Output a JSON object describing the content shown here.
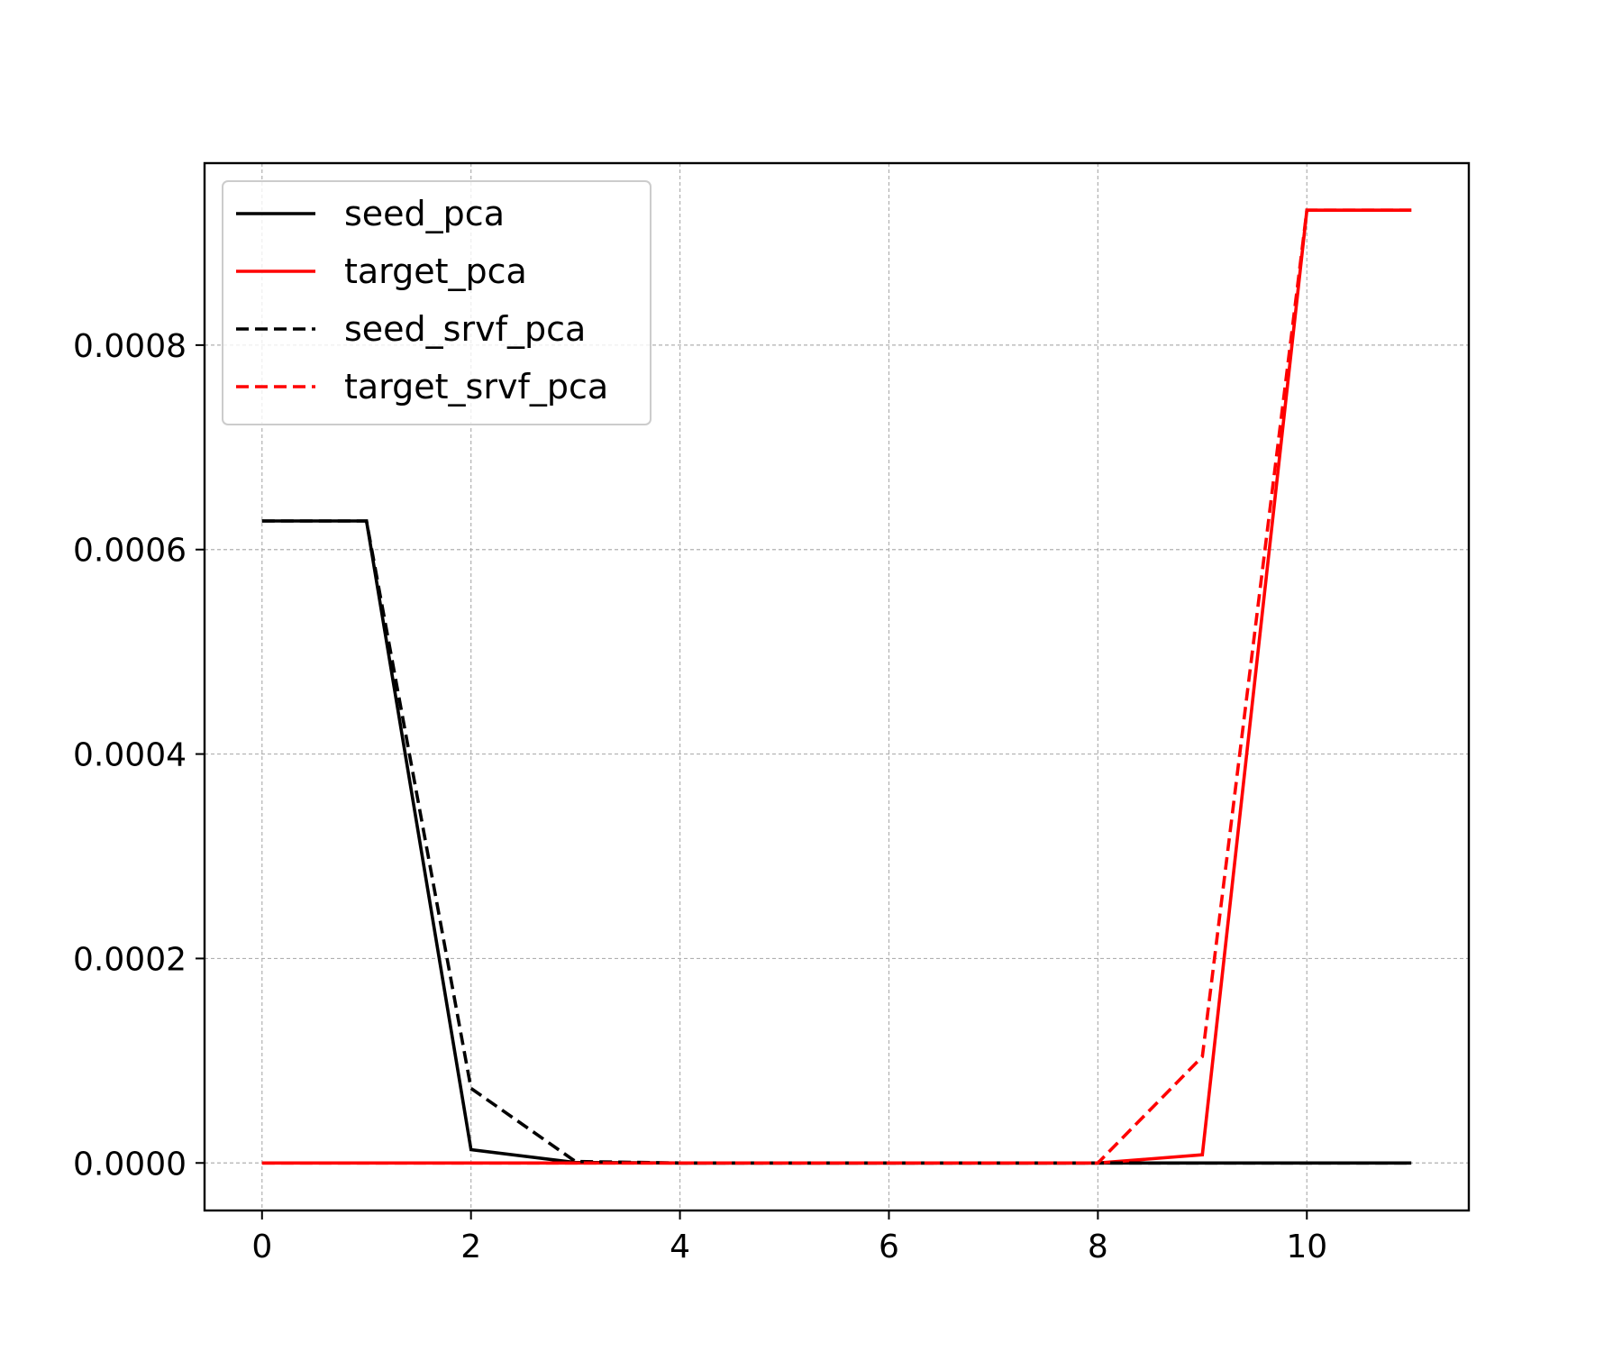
{
  "chart_data": {
    "type": "line",
    "title": "",
    "xlabel": "",
    "ylabel": "",
    "xlim": [
      -0.55,
      11.55
    ],
    "ylim": [
      -4.65e-05,
      0.000978
    ],
    "x_ticks": [
      0,
      2,
      4,
      6,
      8,
      10
    ],
    "x_tick_labels": [
      "0",
      "2",
      "4",
      "6",
      "8",
      "10"
    ],
    "y_ticks": [
      0,
      0.0002,
      0.0004,
      0.0006,
      0.0008
    ],
    "y_tick_labels": [
      "0.0000",
      "0.0002",
      "0.0004",
      "0.0006",
      "0.0008"
    ],
    "grid": true,
    "legend_position": "upper left",
    "x": [
      0,
      1,
      2,
      3,
      4,
      5,
      6,
      7,
      8,
      9,
      10,
      11
    ],
    "series": [
      {
        "name": "seed_pca",
        "color": "#000000",
        "style": "solid",
        "values": [
          0.000628,
          0.000628,
          1.3e-05,
          5e-07,
          0,
          0,
          0,
          0,
          0,
          0,
          0,
          0
        ]
      },
      {
        "name": "target_pca",
        "color": "#ff0000",
        "style": "solid",
        "values": [
          0,
          0,
          0,
          0,
          0,
          0,
          0,
          0,
          0,
          8e-06,
          0.000932,
          0.000932
        ]
      },
      {
        "name": "seed_srvf_pca",
        "color": "#000000",
        "style": "dashed",
        "values": [
          0.000628,
          0.000628,
          7.3e-05,
          1.5e-06,
          0,
          0,
          0,
          0,
          0,
          0,
          0,
          0
        ]
      },
      {
        "name": "target_srvf_pca",
        "color": "#ff0000",
        "style": "dashed",
        "values": [
          0,
          0,
          0,
          0,
          0,
          0,
          0,
          0,
          0,
          0.000104,
          0.000932,
          0.000932
        ]
      }
    ]
  }
}
